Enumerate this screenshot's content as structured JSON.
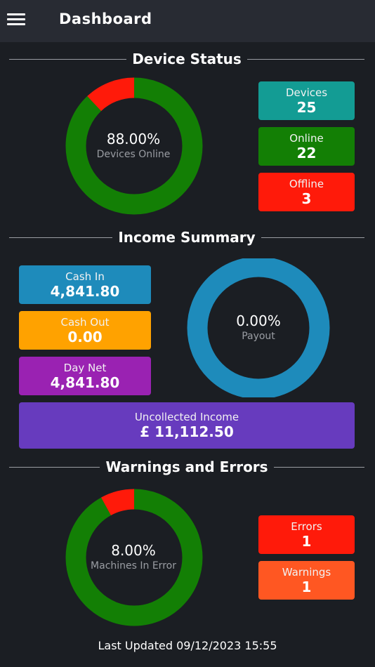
{
  "header": {
    "title": "Dashboard",
    "menu_icon": "hamburger-icon"
  },
  "device_status": {
    "title": "Device Status",
    "donut": {
      "percent_label": "88.00%",
      "sub_label": "Devices Online",
      "online_fraction": 0.88,
      "colors": {
        "ok": "#137f05",
        "bad": "#ff1a0a"
      }
    },
    "cards": [
      {
        "label": "Devices",
        "value": "25",
        "color": "#139c94"
      },
      {
        "label": "Online",
        "value": "22",
        "color": "#137f05"
      },
      {
        "label": "Offline",
        "value": "3",
        "color": "#ff1a0a"
      }
    ]
  },
  "income_summary": {
    "title": "Income Summary",
    "cards": [
      {
        "label": "Cash In",
        "value": "4,841.80",
        "color": "#1e8bbb"
      },
      {
        "label": "Cash Out",
        "value": "0.00",
        "color": "#ffa200"
      },
      {
        "label": "Day Net",
        "value": "4,841.80",
        "color": "#9a22b2"
      }
    ],
    "uncollected": {
      "label": "Uncollected Income",
      "value": "£ 11,112.50",
      "color": "#673bbe"
    },
    "donut": {
      "percent_label": "0.00%",
      "sub_label": "Payout",
      "payout_fraction": 0.0,
      "color": "#1e8bbb"
    }
  },
  "warnings_errors": {
    "title": "Warnings and Errors",
    "donut": {
      "percent_label": "8.00%",
      "sub_label": "Machines In Error",
      "error_fraction": 0.08,
      "colors": {
        "ok": "#137f05",
        "bad": "#ff1a0a"
      }
    },
    "cards": [
      {
        "label": "Errors",
        "value": "1",
        "color": "#ff1a0a"
      },
      {
        "label": "Warnings",
        "value": "1",
        "color": "#ff5722"
      }
    ]
  },
  "footer": {
    "last_updated": "Last Updated 09/12/2023 15:55"
  }
}
